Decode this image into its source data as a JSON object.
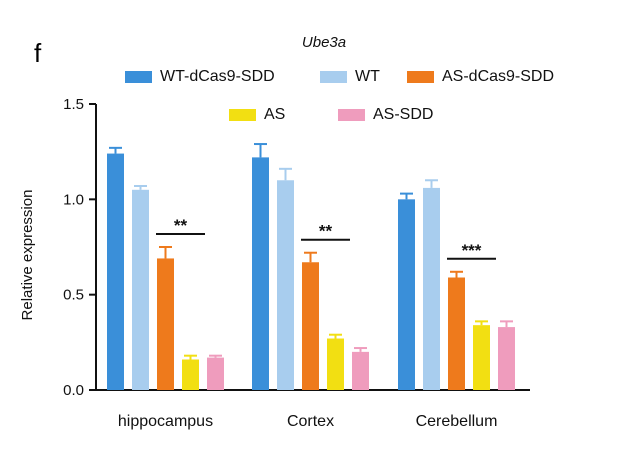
{
  "panel_label": "f",
  "chart_data": {
    "type": "bar",
    "title": "Ube3a",
    "xlabel": "",
    "ylabel": "Relative expression",
    "ylim": [
      0,
      1.5
    ],
    "yticks": [
      "0.0",
      "0.5",
      "1.0",
      "1.5"
    ],
    "categories": [
      "hippocampus",
      "Cortex",
      "Cerebellum"
    ],
    "series": [
      {
        "name": "WT-dCas9-SDD",
        "color": "#3a8fd9",
        "values": [
          1.24,
          1.22,
          1.0
        ],
        "errors": [
          0.03,
          0.07,
          0.03
        ]
      },
      {
        "name": "WT",
        "color": "#a8cdee",
        "values": [
          1.05,
          1.1,
          1.06
        ],
        "errors": [
          0.02,
          0.06,
          0.04
        ]
      },
      {
        "name": "AS-dCas9-SDD",
        "color": "#ee7a1c",
        "values": [
          0.69,
          0.67,
          0.59
        ],
        "errors": [
          0.06,
          0.05,
          0.03
        ]
      },
      {
        "name": "AS",
        "color": "#f2df12",
        "values": [
          0.16,
          0.27,
          0.34
        ],
        "errors": [
          0.02,
          0.02,
          0.02
        ]
      },
      {
        "name": "AS-SDD",
        "color": "#ef9cbd",
        "values": [
          0.17,
          0.2,
          0.33
        ],
        "errors": [
          0.01,
          0.02,
          0.03
        ]
      }
    ],
    "annotations": [
      {
        "text": "**",
        "category": "hippocampus"
      },
      {
        "text": "**",
        "category": "Cortex"
      },
      {
        "text": "***",
        "category": "Cerebellum"
      }
    ],
    "legend_position": "top"
  }
}
